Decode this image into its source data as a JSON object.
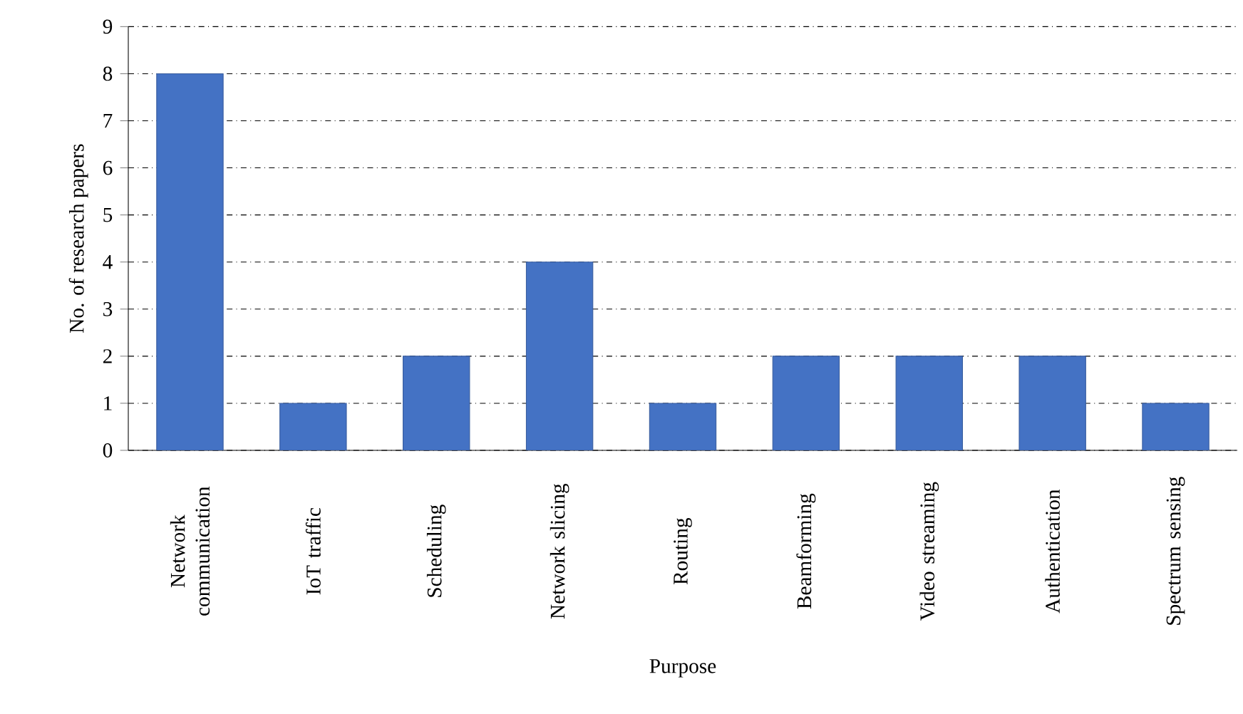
{
  "chart_data": {
    "type": "bar",
    "xlabel": "Purpose",
    "ylabel": "No. of research papers",
    "categories": [
      "Network communication",
      "IoT traffic",
      "Scheduling",
      "Network slicing",
      "Routing",
      "Beamforming",
      "Video streaming",
      "Authentication",
      "Spectrum sensing"
    ],
    "values": [
      8,
      1,
      2,
      4,
      1,
      2,
      2,
      2,
      1
    ],
    "color": "#4472c4",
    "ylim": [
      0,
      9
    ],
    "yticks": [
      0,
      1,
      2,
      3,
      4,
      5,
      6,
      7,
      8,
      9
    ],
    "grid": "y"
  }
}
